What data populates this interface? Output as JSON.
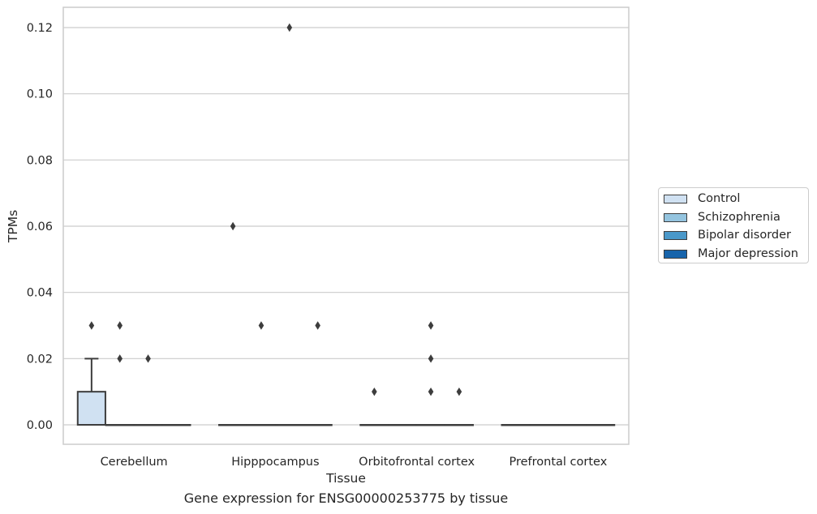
{
  "chart_data": {
    "type": "box",
    "xlabel": "Tissue",
    "ylabel": "TPMs",
    "caption": "Gene expression for ENSG00000253775 by tissue",
    "ylim": [
      -0.006,
      0.126
    ],
    "yticks": [
      0.0,
      0.02,
      0.04,
      0.06,
      0.08,
      0.1,
      0.12
    ],
    "ytick_labels": [
      "0.00",
      "0.02",
      "0.04",
      "0.06",
      "0.08",
      "0.10",
      "0.12"
    ],
    "grid": true,
    "legend_position": "right",
    "categories": [
      "Cerebellum",
      "Hipppocampus",
      "Orbitofrontal cortex",
      "Prefrontal cortex"
    ],
    "series": [
      {
        "name": "Control",
        "color": "#d0e1f2",
        "boxes": [
          {
            "q1": 0.0,
            "median": 0.0,
            "q3": 0.01,
            "whisker_low": 0.0,
            "whisker_high": 0.02,
            "outliers": [
              0.03
            ]
          },
          {
            "q1": 0.0,
            "median": 0.0,
            "q3": 0.0,
            "whisker_low": 0.0,
            "whisker_high": 0.0,
            "outliers": [
              0.06
            ]
          },
          {
            "q1": 0.0,
            "median": 0.0,
            "q3": 0.0,
            "whisker_low": 0.0,
            "whisker_high": 0.0,
            "outliers": [
              0.01
            ]
          },
          {
            "q1": 0.0,
            "median": 0.0,
            "q3": 0.0,
            "whisker_low": 0.0,
            "whisker_high": 0.0,
            "outliers": []
          }
        ]
      },
      {
        "name": "Schizophrenia",
        "color": "#94c4df",
        "boxes": [
          {
            "q1": 0.0,
            "median": 0.0,
            "q3": 0.0,
            "whisker_low": 0.0,
            "whisker_high": 0.0,
            "outliers": [
              0.03,
              0.02
            ]
          },
          {
            "q1": 0.0,
            "median": 0.0,
            "q3": 0.0,
            "whisker_low": 0.0,
            "whisker_high": 0.0,
            "outliers": [
              0.03
            ]
          },
          {
            "q1": 0.0,
            "median": 0.0,
            "q3": 0.0,
            "whisker_low": 0.0,
            "whisker_high": 0.0,
            "outliers": []
          },
          {
            "q1": 0.0,
            "median": 0.0,
            "q3": 0.0,
            "whisker_low": 0.0,
            "whisker_high": 0.0,
            "outliers": []
          }
        ]
      },
      {
        "name": "Bipolar disorder",
        "color": "#4a98c9",
        "boxes": [
          {
            "q1": 0.0,
            "median": 0.0,
            "q3": 0.0,
            "whisker_low": 0.0,
            "whisker_high": 0.0,
            "outliers": [
              0.02
            ]
          },
          {
            "q1": 0.0,
            "median": 0.0,
            "q3": 0.0,
            "whisker_low": 0.0,
            "whisker_high": 0.0,
            "outliers": [
              0.12
            ]
          },
          {
            "q1": 0.0,
            "median": 0.0,
            "q3": 0.0,
            "whisker_low": 0.0,
            "whisker_high": 0.0,
            "outliers": [
              0.03,
              0.02,
              0.01
            ]
          },
          {
            "q1": 0.0,
            "median": 0.0,
            "q3": 0.0,
            "whisker_low": 0.0,
            "whisker_high": 0.0,
            "outliers": []
          }
        ]
      },
      {
        "name": "Major depression",
        "color": "#1764ab",
        "boxes": [
          {
            "q1": 0.0,
            "median": 0.0,
            "q3": 0.0,
            "whisker_low": 0.0,
            "whisker_high": 0.0,
            "outliers": []
          },
          {
            "q1": 0.0,
            "median": 0.0,
            "q3": 0.0,
            "whisker_low": 0.0,
            "whisker_high": 0.0,
            "outliers": [
              0.03
            ]
          },
          {
            "q1": 0.0,
            "median": 0.0,
            "q3": 0.0,
            "whisker_low": 0.0,
            "whisker_high": 0.0,
            "outliers": [
              0.01
            ]
          },
          {
            "q1": 0.0,
            "median": 0.0,
            "q3": 0.0,
            "whisker_low": 0.0,
            "whisker_high": 0.0,
            "outliers": []
          }
        ]
      }
    ]
  }
}
